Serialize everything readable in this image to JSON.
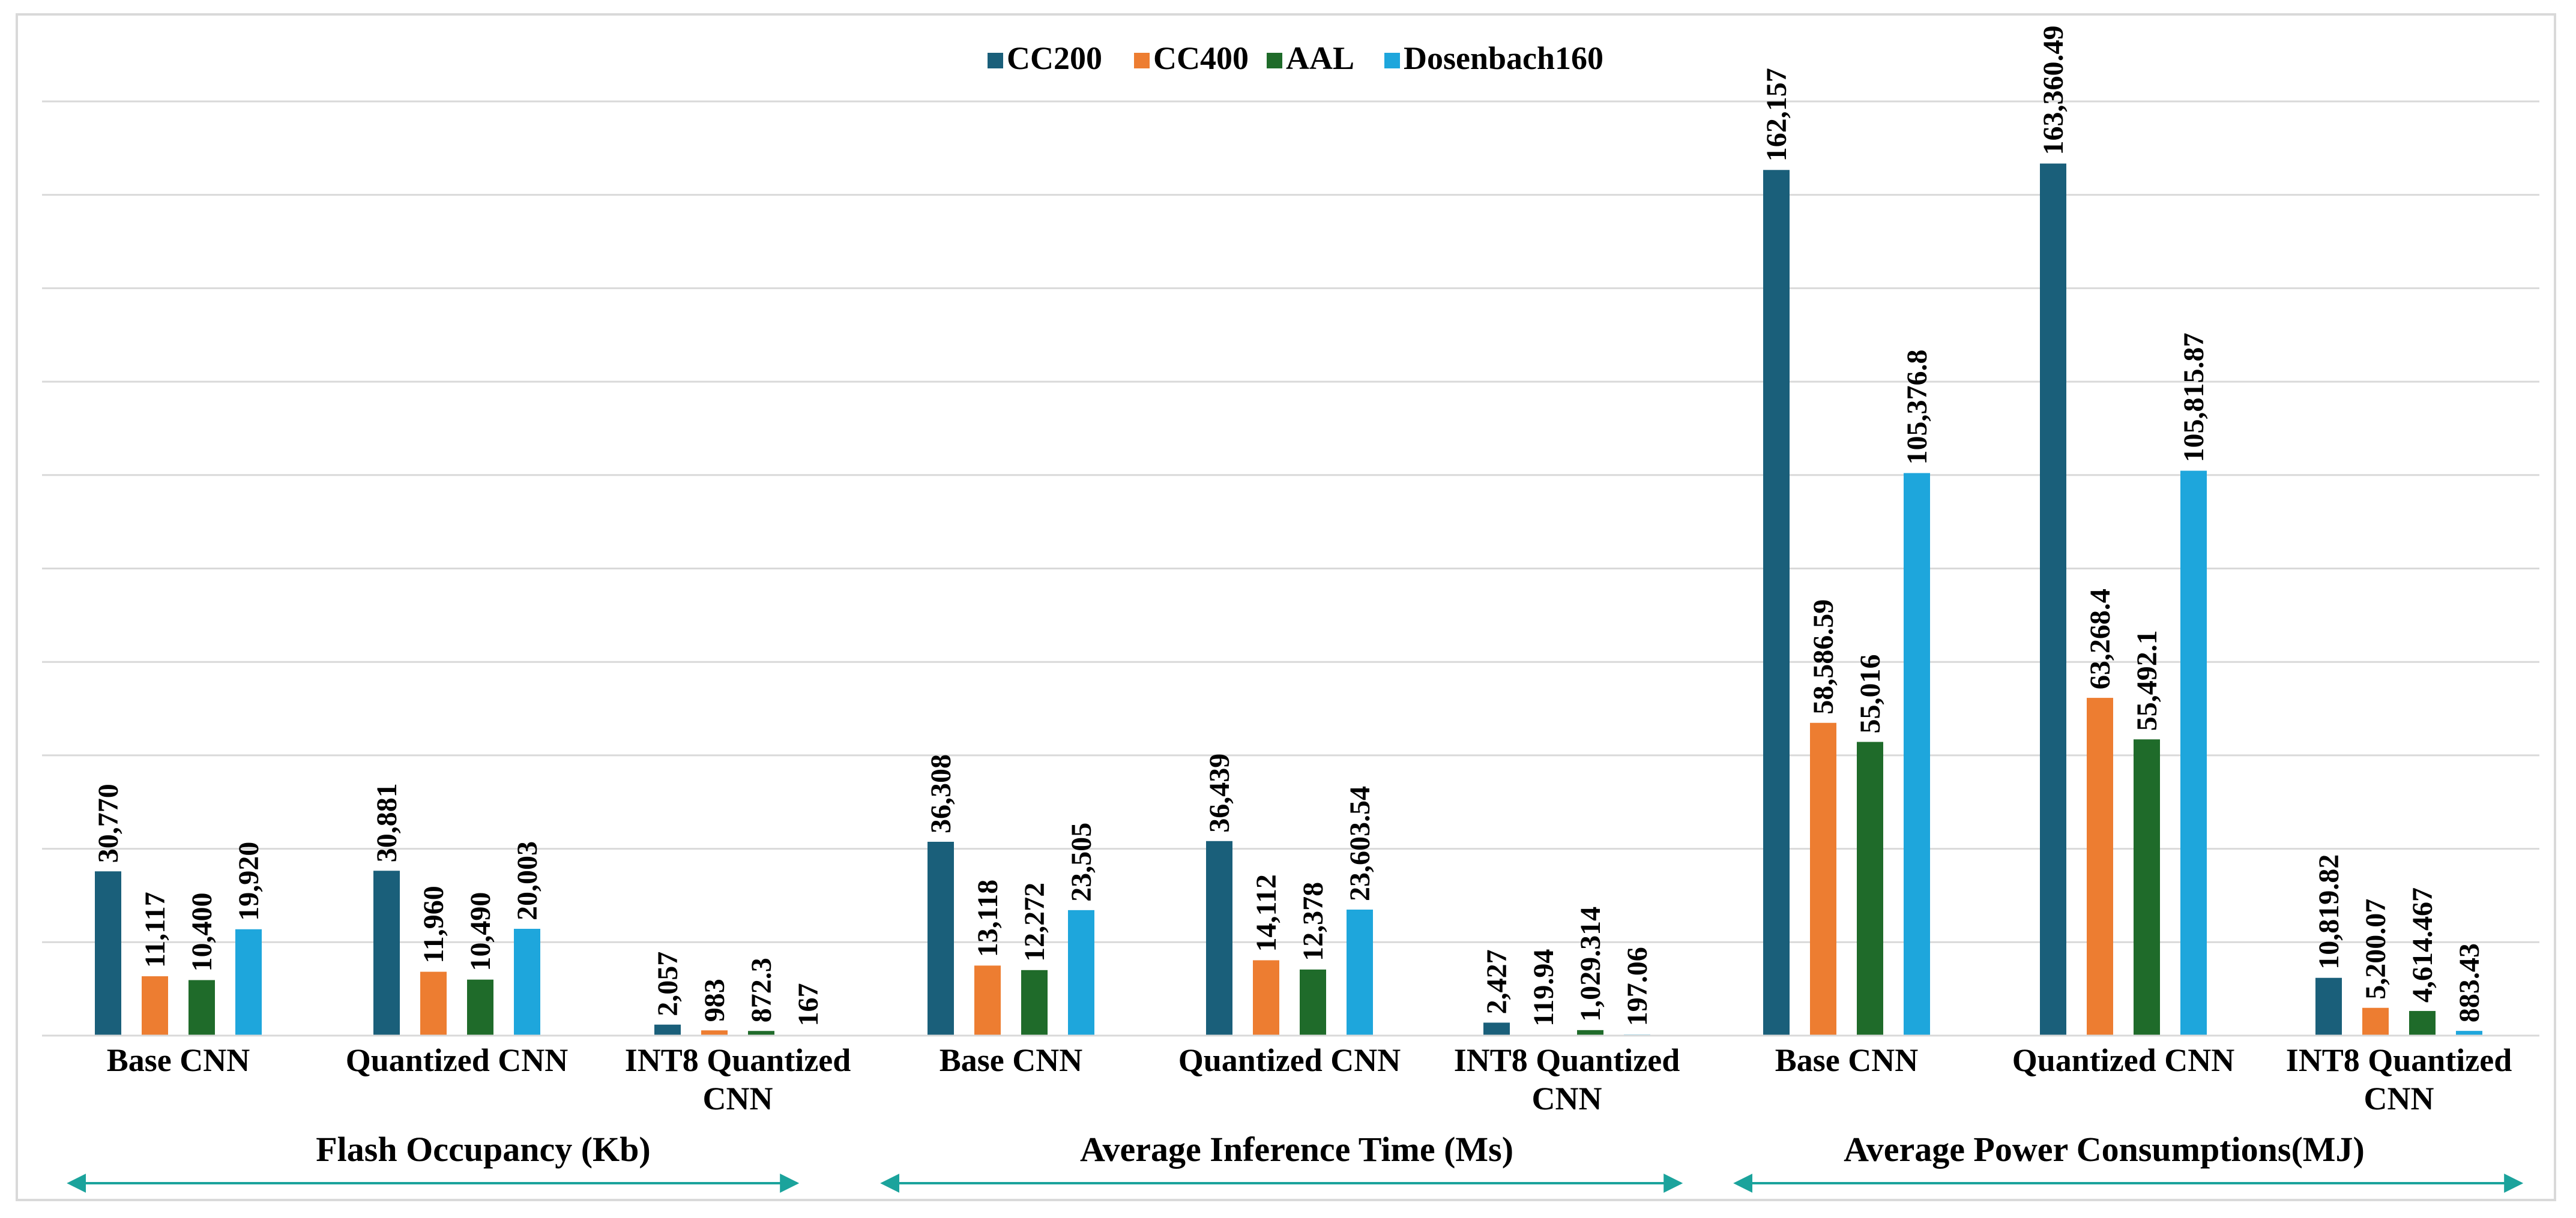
{
  "chart_data": {
    "type": "bar",
    "title": "",
    "ylim": [
      0,
      175000
    ],
    "grid": true,
    "legend": {
      "position": "top-center",
      "entries": [
        "CC200",
        "CC400",
        "AAL",
        "Dosenbach160"
      ]
    },
    "colors": {
      "CC200": "#1a5f7a",
      "CC400": "#ed7d31",
      "AAL": "#1f6b2a",
      "Dosenbach160": "#1ea6dc",
      "grid": "#d9d9d9",
      "arrow": "#1ba39c"
    },
    "groups": [
      {
        "label": "Flash Occupancy (Kb)",
        "categories": [
          {
            "label": "Base CNN",
            "values": [
              30770,
              11117,
              10400,
              19920
            ],
            "labels": [
              "30,770",
              "11,117",
              "10,400",
              "19,920"
            ]
          },
          {
            "label": "Quantized CNN",
            "values": [
              30881,
              11960,
              10490,
              20003
            ],
            "labels": [
              "30,881",
              "11,960",
              "10,490",
              "20,003"
            ]
          },
          {
            "label": "INT8 Quantized CNN",
            "values": [
              2057,
              983,
              872.3,
              167
            ],
            "labels": [
              "2,057",
              "983",
              "872.3",
              "167"
            ]
          }
        ]
      },
      {
        "label": "Average Inference Time (Ms)",
        "categories": [
          {
            "label": "Base CNN",
            "values": [
              36308,
              13118,
              12272,
              23505
            ],
            "labels": [
              "36,308",
              "13,118",
              "12,272",
              "23,505"
            ]
          },
          {
            "label": "Quantized CNN",
            "values": [
              36439,
              14112,
              12378,
              23603.54
            ],
            "labels": [
              "36,439",
              "14,112",
              "12,378",
              "23,603.54"
            ]
          },
          {
            "label": "INT8 Quantized CNN",
            "values": [
              2427,
              119.94,
              1029.314,
              197.06
            ],
            "labels": [
              "2,427",
              "119.94",
              "1,029.314",
              "197.06"
            ]
          }
        ]
      },
      {
        "label": "Average Power Consumptions(MJ)",
        "categories": [
          {
            "label": "Base CNN",
            "values": [
              162157,
              58586.59,
              55016,
              105376.8
            ],
            "labels": [
              "162,157",
              "58,586.59",
              "55,016",
              "105,376.8"
            ]
          },
          {
            "label": "Quantized CNN",
            "values": [
              163360.49,
              63268.4,
              55492.1,
              105815.87
            ],
            "labels": [
              "163,360.49",
              "63,268.4",
              "55,492.1",
              "105,815.87"
            ]
          },
          {
            "label": "INT8 Quantized CNN",
            "values": [
              10819.82,
              5200.07,
              4614.467,
              883.43
            ],
            "labels": [
              "10,819.82",
              "5,200.07",
              "4,614.467",
              "883.43"
            ]
          }
        ]
      }
    ]
  }
}
